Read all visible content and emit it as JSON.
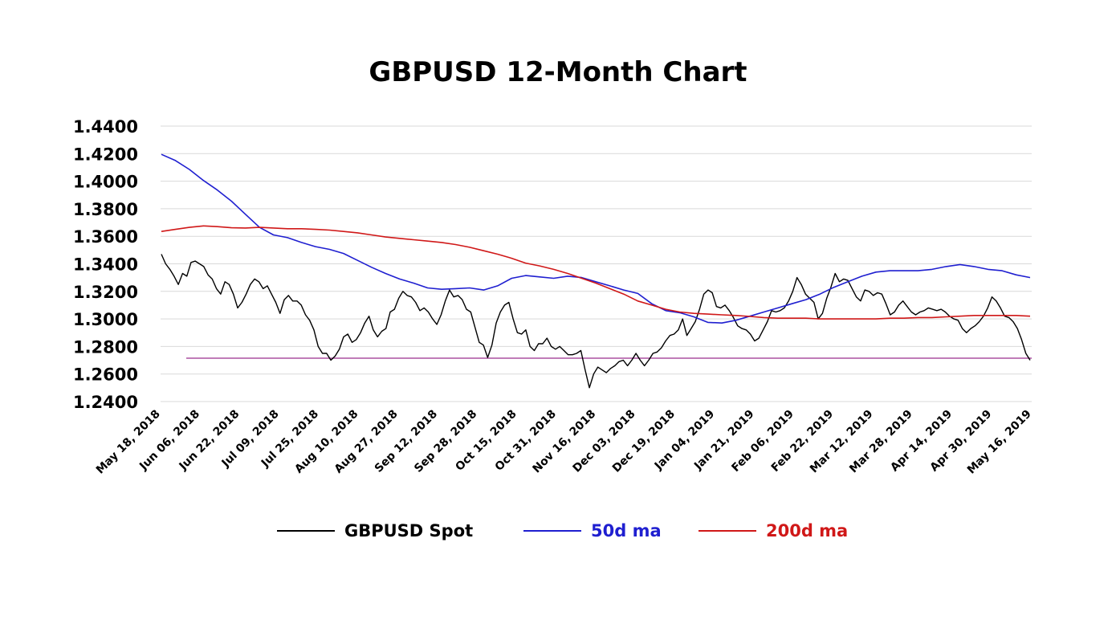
{
  "chart_data": {
    "type": "line",
    "title": "GBPUSD  12-Month Chart",
    "xlabel": "",
    "ylabel": "",
    "ylim": [
      1.24,
      1.44
    ],
    "yticks": [
      "1.4400",
      "1.4200",
      "1.4000",
      "1.3800",
      "1.3600",
      "1.3400",
      "1.3200",
      "1.3000",
      "1.2800",
      "1.2600",
      "1.2400"
    ],
    "x_tick_labels": [
      "May 18, 2018",
      "Jun 06, 2018",
      "Jun 22, 2018",
      "Jul 09, 2018",
      "Jul 25, 2018",
      "Aug 10, 2018",
      "Aug 27, 2018",
      "Sep 12, 2018",
      "Sep 28, 2018",
      "Oct 15, 2018",
      "Oct 31, 2018",
      "Nov 16, 2018",
      "Dec 03, 2018",
      "Dec 19, 2018",
      "Jan 04, 2019",
      "Jan 21, 2019",
      "Feb 06, 2019",
      "Feb 22, 2019",
      "Mar 12, 2019",
      "Mar 28, 2019",
      "Apr 14, 2019",
      "Apr 30, 2019",
      "May 16, 2019"
    ],
    "grid": true,
    "legend_position": "bottom",
    "reference_line": {
      "value": 1.2715,
      "color": "#9b2d8e"
    },
    "series": [
      {
        "name": "GBPUSD Spot",
        "color": "#000000",
        "values": [
          1.347,
          1.34,
          1.336,
          1.331,
          1.325,
          1.333,
          1.331,
          1.341,
          1.342,
          1.34,
          1.338,
          1.332,
          1.329,
          1.322,
          1.318,
          1.327,
          1.325,
          1.318,
          1.308,
          1.312,
          1.318,
          1.325,
          1.329,
          1.327,
          1.322,
          1.324,
          1.318,
          1.312,
          1.304,
          1.314,
          1.317,
          1.313,
          1.313,
          1.31,
          1.303,
          1.299,
          1.292,
          1.28,
          1.275,
          1.275,
          1.27,
          1.273,
          1.278,
          1.287,
          1.289,
          1.283,
          1.285,
          1.29,
          1.297,
          1.302,
          1.292,
          1.287,
          1.291,
          1.293,
          1.305,
          1.307,
          1.315,
          1.32,
          1.317,
          1.316,
          1.312,
          1.306,
          1.308,
          1.305,
          1.3,
          1.296,
          1.303,
          1.313,
          1.321,
          1.316,
          1.317,
          1.314,
          1.307,
          1.305,
          1.294,
          1.283,
          1.281,
          1.272,
          1.281,
          1.297,
          1.305,
          1.31,
          1.312,
          1.3,
          1.29,
          1.289,
          1.292,
          1.28,
          1.277,
          1.282,
          1.282,
          1.286,
          1.28,
          1.278,
          1.28,
          1.277,
          1.274,
          1.274,
          1.275,
          1.277,
          1.263,
          1.25,
          1.26,
          1.265,
          1.263,
          1.261,
          1.264,
          1.266,
          1.269,
          1.27,
          1.266,
          1.27,
          1.275,
          1.27,
          1.266,
          1.27,
          1.275,
          1.276,
          1.279,
          1.284,
          1.288,
          1.289,
          1.292,
          1.3,
          1.288,
          1.293,
          1.298,
          1.307,
          1.318,
          1.321,
          1.319,
          1.309,
          1.308,
          1.31,
          1.306,
          1.301,
          1.295,
          1.293,
          1.292,
          1.289,
          1.284,
          1.286,
          1.292,
          1.298,
          1.306,
          1.305,
          1.306,
          1.308,
          1.313,
          1.32,
          1.33,
          1.325,
          1.318,
          1.315,
          1.312,
          1.3,
          1.304,
          1.315,
          1.323,
          1.333,
          1.327,
          1.329,
          1.328,
          1.322,
          1.316,
          1.313,
          1.321,
          1.32,
          1.317,
          1.319,
          1.318,
          1.311,
          1.303,
          1.305,
          1.31,
          1.313,
          1.309,
          1.305,
          1.303,
          1.305,
          1.306,
          1.308,
          1.307,
          1.306,
          1.307,
          1.305,
          1.302,
          1.3,
          1.299,
          1.293,
          1.29,
          1.293,
          1.295,
          1.298,
          1.302,
          1.308,
          1.316,
          1.313,
          1.308,
          1.302,
          1.301,
          1.298,
          1.293,
          1.285,
          1.275,
          1.27
        ]
      },
      {
        "name": "50d ma",
        "color": "#1f1fd0",
        "values": [
          1.4195,
          1.415,
          1.4085,
          1.4005,
          1.3935,
          1.3855,
          1.376,
          1.3665,
          1.361,
          1.359,
          1.3555,
          1.3525,
          1.3505,
          1.3475,
          1.3425,
          1.3375,
          1.333,
          1.329,
          1.326,
          1.3225,
          1.3215,
          1.322,
          1.3225,
          1.321,
          1.324,
          1.3295,
          1.3315,
          1.3305,
          1.3295,
          1.331,
          1.33,
          1.327,
          1.324,
          1.321,
          1.3185,
          1.311,
          1.306,
          1.3045,
          1.3015,
          1.2975,
          1.297,
          1.299,
          1.302,
          1.305,
          1.308,
          1.311,
          1.314,
          1.318,
          1.323,
          1.327,
          1.331,
          1.334,
          1.335,
          1.335,
          1.335,
          1.336,
          1.338,
          1.3395,
          1.338,
          1.336,
          1.335,
          1.332,
          1.33
        ]
      },
      {
        "name": "200d ma",
        "color": "#d01818",
        "values": [
          1.3635,
          1.365,
          1.3665,
          1.3675,
          1.367,
          1.3662,
          1.366,
          1.3665,
          1.366,
          1.3655,
          1.3655,
          1.365,
          1.3645,
          1.3635,
          1.3625,
          1.361,
          1.3595,
          1.3585,
          1.3575,
          1.3565,
          1.3555,
          1.354,
          1.352,
          1.3495,
          1.347,
          1.344,
          1.3405,
          1.3385,
          1.336,
          1.333,
          1.3295,
          1.326,
          1.322,
          1.318,
          1.313,
          1.31,
          1.307,
          1.305,
          1.304,
          1.3035,
          1.303,
          1.3025,
          1.3018,
          1.301,
          1.3005,
          1.3005,
          1.3005,
          1.3,
          1.3,
          1.3,
          1.3,
          1.3,
          1.3005,
          1.3005,
          1.301,
          1.301,
          1.3015,
          1.302,
          1.3025,
          1.3025,
          1.3025,
          1.3025,
          1.302
        ]
      }
    ]
  }
}
